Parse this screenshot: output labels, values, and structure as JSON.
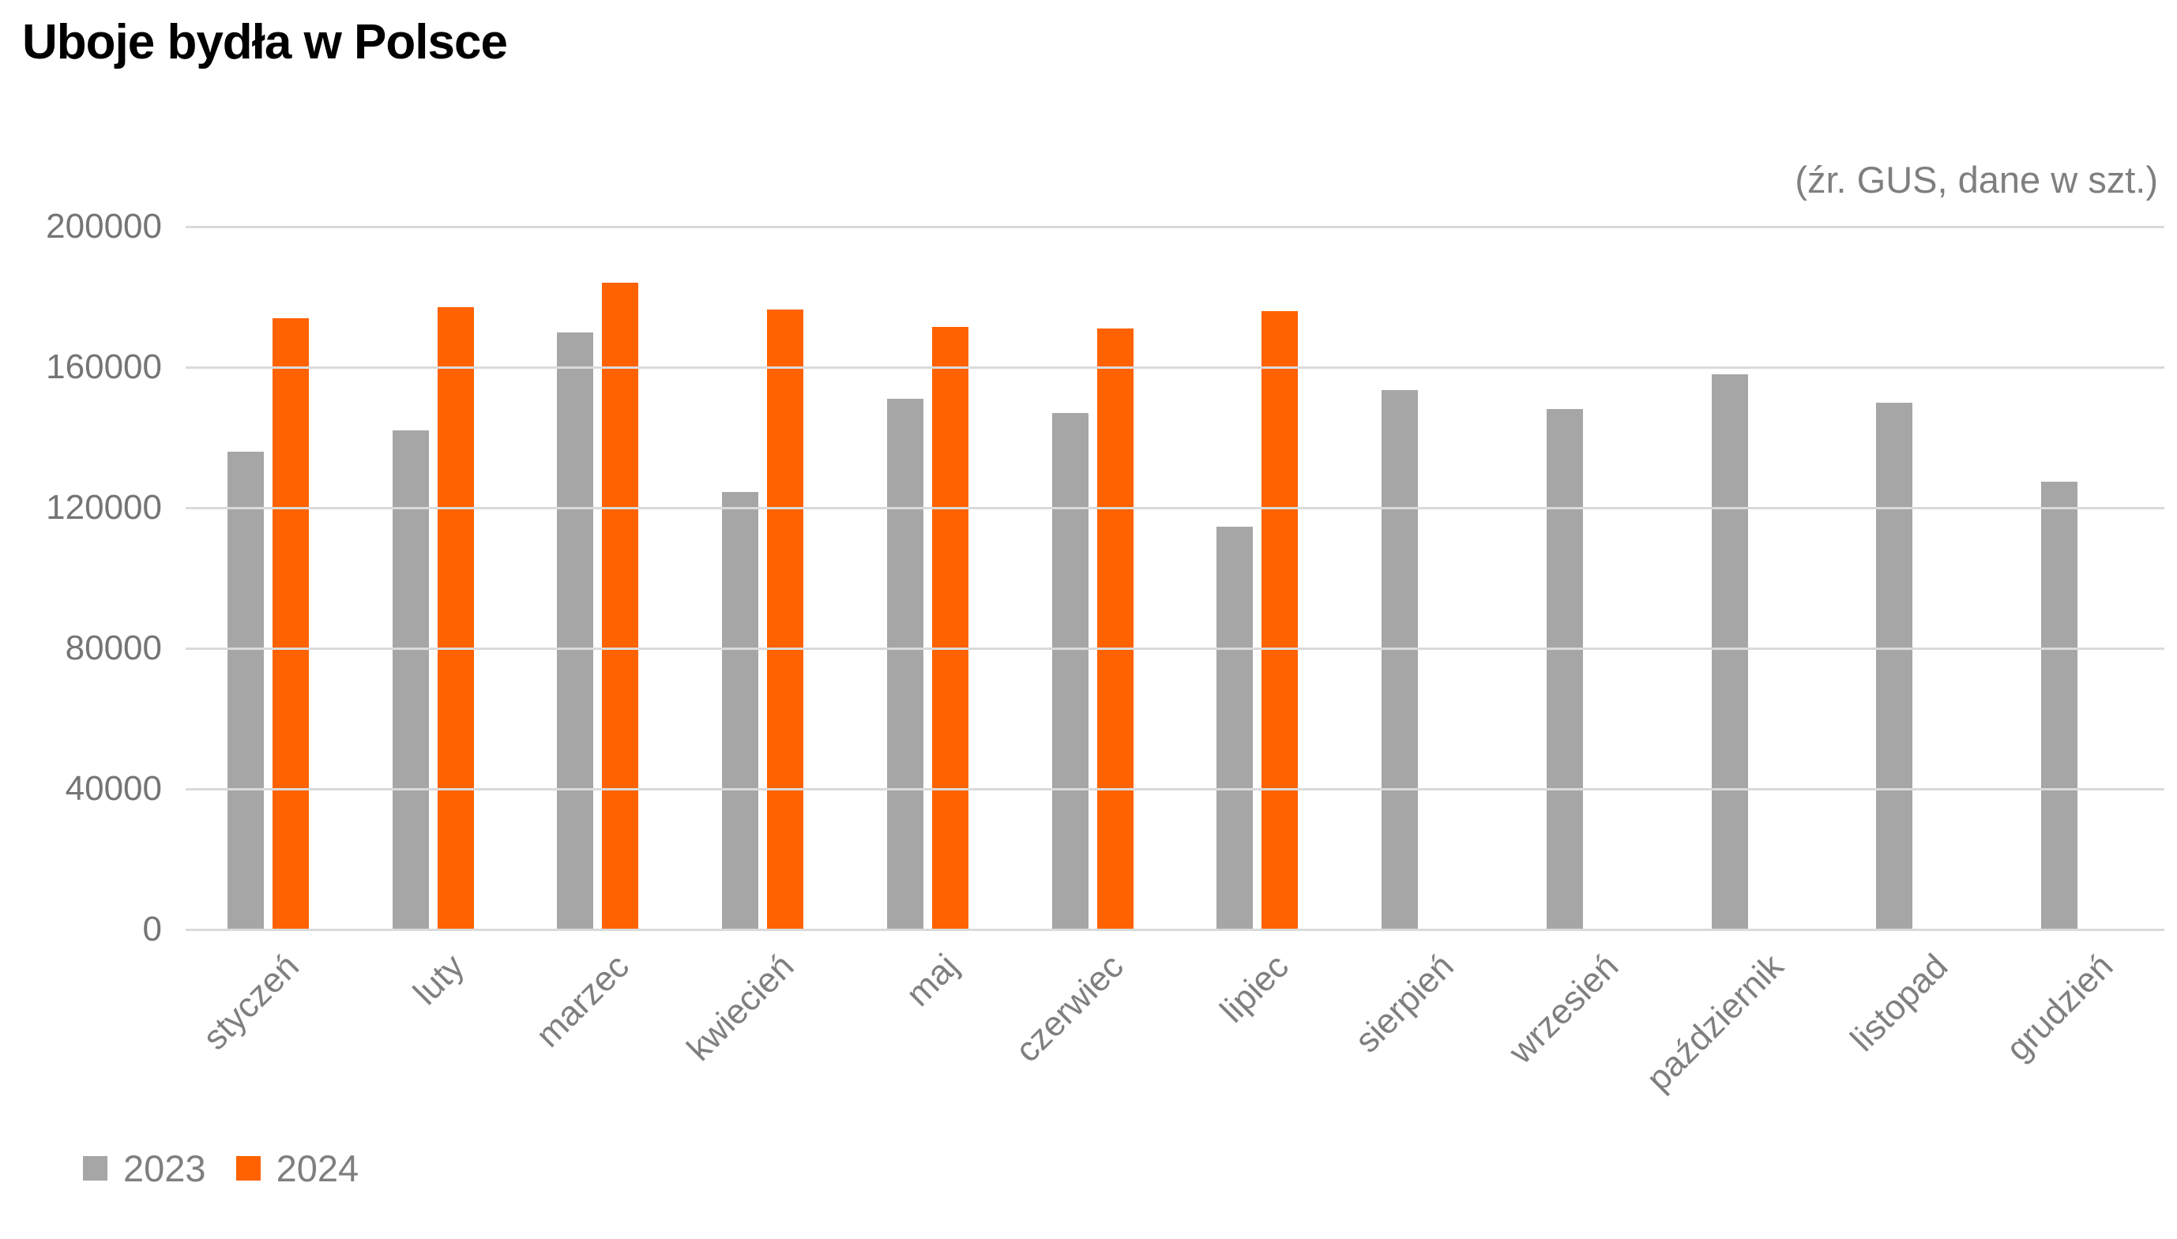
{
  "title": "Uboje bydła w Polsce",
  "source_note": "(źr. GUS, dane w szt.)",
  "y_axis": {
    "max": 200000,
    "ticks": [
      "200000",
      "160000",
      "120000",
      "80000",
      "40000",
      "0"
    ]
  },
  "legend": {
    "items": [
      {
        "label": "2023",
        "color": "#A6A6A6"
      },
      {
        "label": "2024",
        "color": "#FF6200"
      }
    ]
  },
  "colors": {
    "series_2023": "#A6A6A6",
    "series_2024": "#FF6200",
    "gridline": "#DADADA",
    "axis_text": "#7F7F7F",
    "title_text": "#000000"
  },
  "chart_data": {
    "type": "bar",
    "title": "Uboje bydła w Polsce",
    "categories": [
      "styczeń",
      "luty",
      "marzec",
      "kwiecień",
      "maj",
      "czerwiec",
      "lipiec",
      "sierpień",
      "wrzesień",
      "październik",
      "listopad",
      "grudzień"
    ],
    "series": [
      {
        "name": "2023",
        "color": "#A6A6A6",
        "values": [
          136000,
          142000,
          170000,
          124500,
          151000,
          147000,
          114500,
          153500,
          148000,
          158000,
          150000,
          127500
        ]
      },
      {
        "name": "2024",
        "color": "#FF6200",
        "values": [
          174000,
          177000,
          184000,
          176500,
          171500,
          171000,
          176000,
          null,
          null,
          null,
          null,
          null
        ]
      }
    ],
    "xlabel": "",
    "ylabel": "",
    "ylim": [
      0,
      200000
    ],
    "grid": true,
    "legend_position": "bottom-left"
  }
}
